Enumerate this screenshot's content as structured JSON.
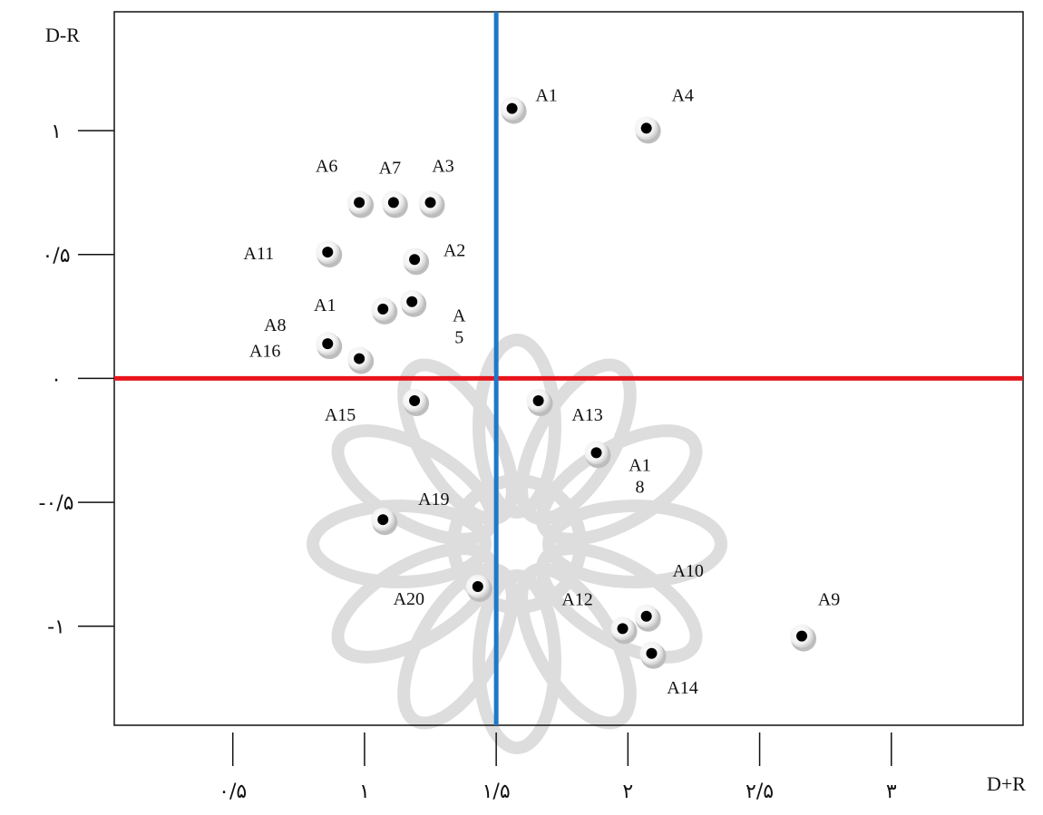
{
  "chart_data": {
    "type": "scatter",
    "xlabel": "D+R",
    "ylabel": "D-R",
    "xlim": [
      0.05,
      3.5
    ],
    "ylim": [
      -1.4,
      1.48
    ],
    "x_ticks": [
      {
        "value": 0.5,
        "label": "۰/۵"
      },
      {
        "value": 1.0,
        "label": "۱"
      },
      {
        "value": 1.5,
        "label": "۱/۵"
      },
      {
        "value": 2.0,
        "label": "۲"
      },
      {
        "value": 2.5,
        "label": "۲/۵"
      },
      {
        "value": 3.0,
        "label": "۳"
      }
    ],
    "y_ticks": [
      {
        "value": 1.0,
        "label": "۱"
      },
      {
        "value": 0.5,
        "label": "۰/۵"
      },
      {
        "value": 0.0,
        "label": "۰"
      },
      {
        "value": -0.5,
        "label": "-۰/۵"
      },
      {
        "value": -1.0,
        "label": "-۱"
      }
    ],
    "reference_lines": {
      "vertical": {
        "x": 1.5,
        "color": "#1f78c8"
      },
      "horizontal": {
        "y": 0.0,
        "color": "#e8141c"
      }
    },
    "points": [
      {
        "x": 1.56,
        "y": 1.09,
        "label_lines": [
          "A1"
        ]
      },
      {
        "x": 2.07,
        "y": 1.01,
        "label_lines": [
          "A4"
        ]
      },
      {
        "x": 0.98,
        "y": 0.71,
        "label_lines": [
          "A6"
        ]
      },
      {
        "x": 1.11,
        "y": 0.71,
        "label_lines": [
          "A7"
        ]
      },
      {
        "x": 1.25,
        "y": 0.71,
        "label_lines": [
          "A3"
        ]
      },
      {
        "x": 0.86,
        "y": 0.51,
        "label_lines": [
          "A11"
        ]
      },
      {
        "x": 1.19,
        "y": 0.48,
        "label_lines": [
          "A2"
        ]
      },
      {
        "x": 1.18,
        "y": 0.31,
        "label_lines": [
          "A",
          "5"
        ]
      },
      {
        "x": 1.07,
        "y": 0.28,
        "label_lines": [
          "A1"
        ]
      },
      {
        "x": 0.86,
        "y": 0.14,
        "label_lines": [
          "A8"
        ]
      },
      {
        "x": 0.98,
        "y": 0.08,
        "label_lines": [
          "A16"
        ]
      },
      {
        "x": 1.19,
        "y": -0.09,
        "label_lines": [
          "A15"
        ]
      },
      {
        "x": 1.66,
        "y": -0.09,
        "label_lines": [
          "A13"
        ]
      },
      {
        "x": 1.88,
        "y": -0.3,
        "label_lines": [
          "A1",
          "8"
        ]
      },
      {
        "x": 1.07,
        "y": -0.57,
        "label_lines": [
          "A19"
        ]
      },
      {
        "x": 1.43,
        "y": -0.84,
        "label_lines": [
          "A20"
        ]
      },
      {
        "x": 2.07,
        "y": -0.96,
        "label_lines": [
          "A10"
        ]
      },
      {
        "x": 1.98,
        "y": -1.01,
        "label_lines": [
          "A12"
        ]
      },
      {
        "x": 2.09,
        "y": -1.11,
        "label_lines": [
          "A14"
        ]
      },
      {
        "x": 2.66,
        "y": -1.04,
        "label_lines": [
          "A9"
        ]
      }
    ]
  }
}
